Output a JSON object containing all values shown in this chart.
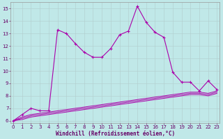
{
  "xlabel": "Windchill (Refroidissement éolien,°C)",
  "bg_color": "#c0e8e8",
  "grid_color": "#b0cccc",
  "line_color": "#aa00aa",
  "x_hours": [
    0,
    1,
    2,
    3,
    4,
    5,
    6,
    7,
    8,
    9,
    10,
    11,
    12,
    13,
    14,
    15,
    16,
    17,
    18,
    19,
    20,
    21,
    22,
    23
  ],
  "main_line": [
    6.0,
    6.5,
    7.0,
    6.8,
    6.8,
    13.3,
    13.0,
    12.2,
    11.5,
    11.1,
    11.1,
    11.8,
    12.9,
    13.2,
    15.2,
    13.9,
    13.1,
    12.7,
    9.9,
    9.1,
    9.1,
    8.4,
    9.2,
    8.5
  ],
  "line2": [
    6.0,
    6.3,
    6.5,
    6.6,
    6.7,
    6.8,
    6.9,
    7.0,
    7.1,
    7.2,
    7.3,
    7.4,
    7.5,
    7.6,
    7.7,
    7.8,
    7.9,
    8.0,
    8.1,
    8.2,
    8.3,
    8.3,
    8.2,
    8.4
  ],
  "line3": [
    6.0,
    6.2,
    6.4,
    6.5,
    6.6,
    6.7,
    6.8,
    6.9,
    7.0,
    7.1,
    7.2,
    7.3,
    7.4,
    7.5,
    7.6,
    7.7,
    7.8,
    7.9,
    8.0,
    8.1,
    8.2,
    8.2,
    8.1,
    8.3
  ],
  "line4": [
    6.0,
    6.1,
    6.3,
    6.4,
    6.5,
    6.6,
    6.7,
    6.8,
    6.9,
    7.0,
    7.1,
    7.2,
    7.3,
    7.4,
    7.5,
    7.6,
    7.7,
    7.8,
    7.9,
    8.0,
    8.1,
    8.1,
    8.0,
    8.2
  ],
  "ylim": [
    5.8,
    15.5
  ],
  "yticks": [
    6,
    7,
    8,
    9,
    10,
    11,
    12,
    13,
    14,
    15
  ],
  "xticks": [
    0,
    1,
    2,
    3,
    4,
    5,
    6,
    7,
    8,
    9,
    10,
    11,
    12,
    13,
    14,
    15,
    16,
    17,
    18,
    19,
    20,
    21,
    22,
    23
  ],
  "tick_fontsize": 5.0,
  "xlabel_fontsize": 5.5
}
